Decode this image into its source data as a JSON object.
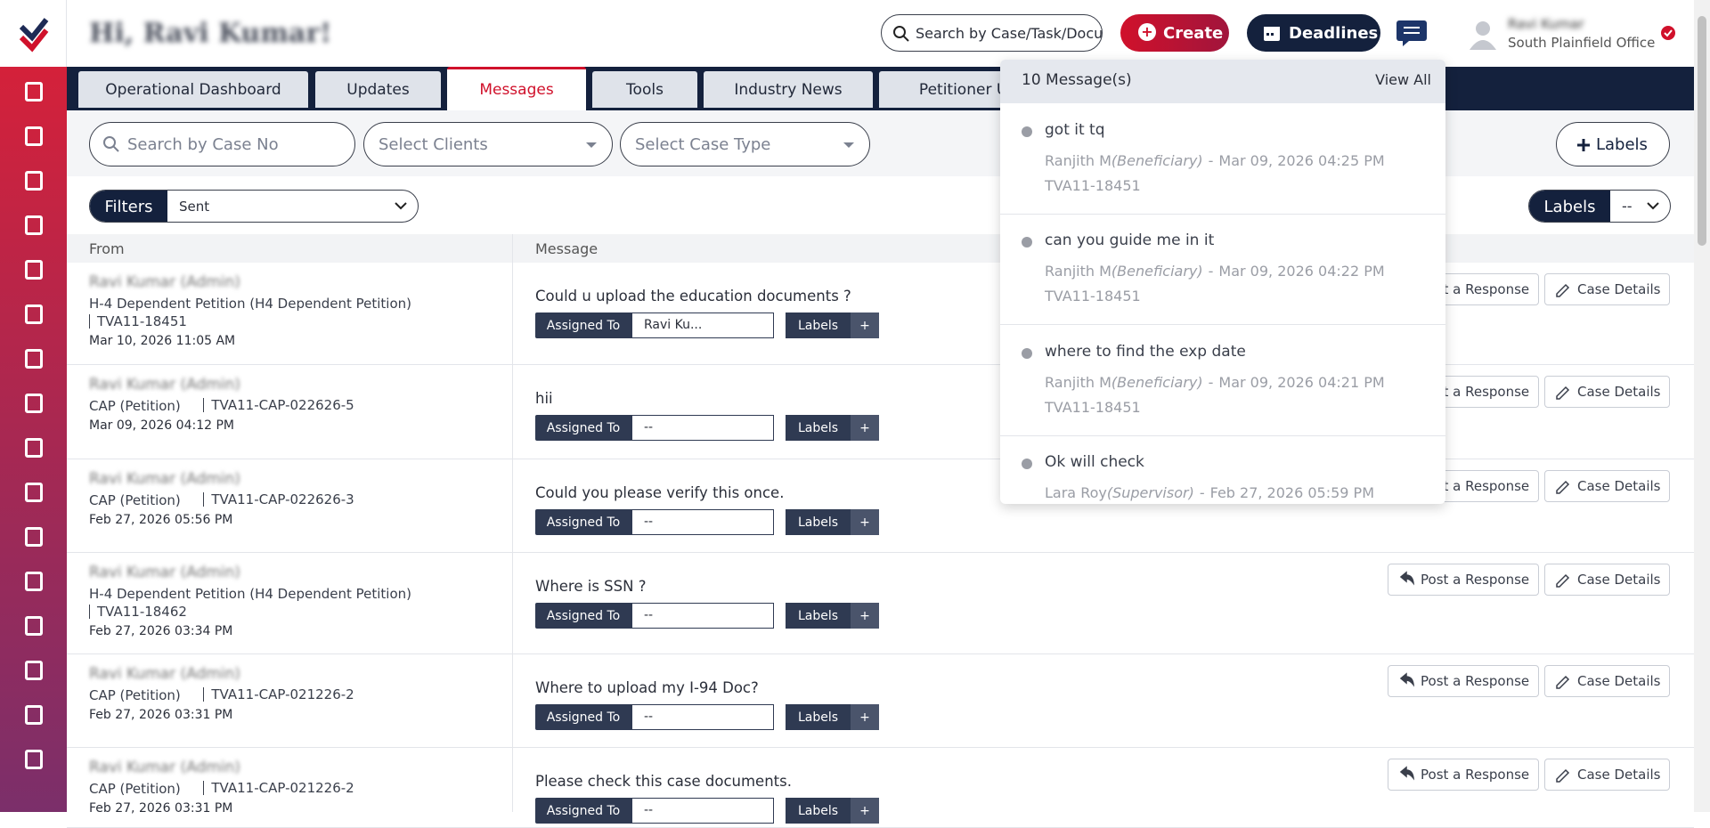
{
  "header": {
    "greeting": "Hi, Ravi Kumar!",
    "search_placeholder": "Search by Case/Task/Docu",
    "create": "Create",
    "deadlines": "Deadlines",
    "user_name": "Ravi Kumar",
    "office": "South Plainfield Office"
  },
  "tabs": [
    "Operational Dashboard",
    "Updates",
    "Messages",
    "Tools",
    "Industry News",
    "Petitioner Up"
  ],
  "filters": {
    "search_case": "Search by Case No",
    "clients": "Select Clients",
    "case_type": "Select Case Type",
    "add_labels": "Labels",
    "filters": "Filters",
    "filter_value": "Sent",
    "labels": "Labels",
    "labels_value": "--"
  },
  "table": {
    "columns": [
      "From",
      "Message"
    ],
    "assigned_to": "Assigned To",
    "labels": "Labels",
    "add": "+",
    "post_response": "Post a Response",
    "case_details": "Case Details",
    "rows": [
      {
        "sender": "Ravi Kumar (Admin)",
        "case": "H-4 Dependent Petition (H4 Dependent Petition)",
        "case_no": "TVA11-18451",
        "date": "Mar 10, 2026 11:05 AM",
        "message": "Could u upload the education documents ?",
        "assigned": "Ravi Ku..."
      },
      {
        "sender": "Ravi Kumar (Admin)",
        "case": "CAP (Petition)",
        "case_no": "TVA11-CAP-022626-5",
        "date": "Mar 09, 2026 04:12 PM",
        "message": "hii",
        "assigned": "--"
      },
      {
        "sender": "Ravi Kumar (Admin)",
        "case": "CAP (Petition)",
        "case_no": "TVA11-CAP-022626-3",
        "date": "Feb 27, 2026 05:56 PM",
        "message": "Could you please verify this once.",
        "assigned": "--"
      },
      {
        "sender": "Ravi Kumar (Admin)",
        "case": "H-4 Dependent Petition (H4 Dependent Petition)",
        "case_no": "TVA11-18462",
        "date": "Feb 27, 2026 03:34 PM",
        "message": "Where is SSN ?",
        "assigned": "--"
      },
      {
        "sender": "Ravi Kumar (Admin)",
        "case": "CAP (Petition)",
        "case_no": "TVA11-CAP-021226-2",
        "date": "Feb 27, 2026 03:31 PM",
        "message": "Where to upload my I-94 Doc?",
        "assigned": "--"
      },
      {
        "sender": "Ravi Kumar (Admin)",
        "case": "CAP (Petition)",
        "case_no": "TVA11-CAP-021226-2",
        "date": "Feb 27, 2026 03:31 PM",
        "message": "Please check this case documents.",
        "assigned": "--"
      }
    ]
  },
  "notifications": {
    "count": "10 Message(s)",
    "view_all": "View All",
    "sep": "-",
    "items": [
      {
        "message": "got it tq",
        "sender": "Ranjith M",
        "role": "(Beneficiary)",
        "date": "Mar 09, 2026 04:25 PM",
        "case": "TVA11-18451"
      },
      {
        "message": "can you guide me in it",
        "sender": "Ranjith M",
        "role": "(Beneficiary)",
        "date": "Mar 09, 2026 04:22 PM",
        "case": "TVA11-18451"
      },
      {
        "message": "where to find the exp date",
        "sender": "Ranjith M",
        "role": "(Beneficiary)",
        "date": "Mar 09, 2026 04:21 PM",
        "case": "TVA11-18451"
      },
      {
        "message": "Ok will check",
        "sender": "Lara Roy",
        "role": "(Supervisor)",
        "date": "Feb 27, 2026 05:59 PM"
      }
    ]
  }
}
